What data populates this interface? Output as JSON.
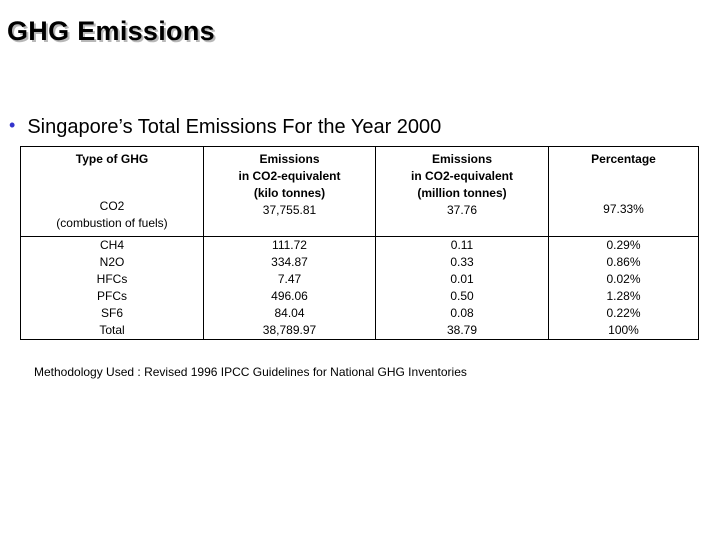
{
  "title": "GHG Emissions",
  "subtitle": "Singapore’s Total Emissions For the Year 2000",
  "table": {
    "headers": {
      "type": "Type of GHG",
      "kilo": [
        "Emissions",
        "in CO2-equivalent",
        "(kilo tonnes)"
      ],
      "million": [
        "Emissions",
        "in CO2-equivalent",
        "(million tonnes)"
      ],
      "percentage": "Percentage"
    },
    "co2": {
      "type": [
        "CO2",
        "(combustion of fuels)"
      ],
      "kilo": "37,755.81",
      "million": "37.76",
      "percentage": "97.33%"
    },
    "others": {
      "types": [
        "CH4",
        "N2O",
        "HFCs",
        "PFCs",
        "SF6",
        "Total"
      ],
      "kilo": [
        "111.72",
        "334.87",
        "7.47",
        "496.06",
        "84.04",
        "38,789.97"
      ],
      "million": [
        "0.11",
        "0.33",
        "0.01",
        "0.50",
        "0.08",
        "38.79"
      ],
      "percentage": [
        "0.29%",
        "0.86%",
        "0.02%",
        "1.28%",
        "0.22%",
        "100%"
      ]
    }
  },
  "footnote": "Methodology Used : Revised 1996 IPCC Guidelines for National GHG Inventories",
  "colors": {
    "bullet": "#3333cc",
    "title_shadow": "#b8b8b8"
  }
}
